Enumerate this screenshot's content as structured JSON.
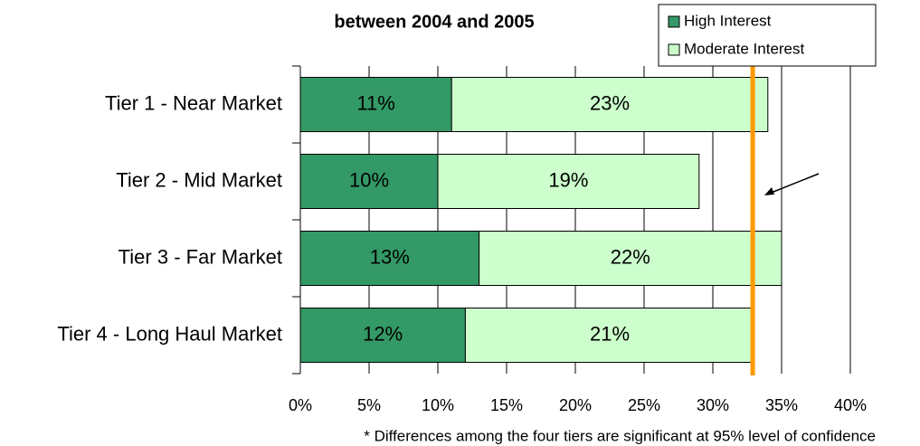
{
  "chart_data": {
    "type": "stacked_barh",
    "title": "between 2004 and 2005",
    "categories": [
      "Tier 1 - Near Market",
      "Tier 2 - Mid Market",
      "Tier 3 - Far Market",
      "Tier 4 - Long Haul Market"
    ],
    "series": [
      {
        "name": "High Interest",
        "color": "#339966",
        "values": [
          11,
          10,
          13,
          12
        ],
        "value_labels": [
          "11%",
          "10%",
          "13%",
          "12%"
        ]
      },
      {
        "name": "Moderate Interest",
        "color": "#ccffcc",
        "values": [
          23,
          19,
          22,
          21
        ],
        "value_labels": [
          "23%",
          "19%",
          "22%",
          "21%"
        ]
      }
    ],
    "xlim": [
      0,
      40
    ],
    "xticks": [
      {
        "value": 0,
        "label": "0%"
      },
      {
        "value": 5,
        "label": "5%"
      },
      {
        "value": 10,
        "label": "10%"
      },
      {
        "value": 15,
        "label": "15%"
      },
      {
        "value": 20,
        "label": "20%"
      },
      {
        "value": 25,
        "label": "25%"
      },
      {
        "value": 30,
        "label": "30%"
      },
      {
        "value": 35,
        "label": "35%"
      },
      {
        "value": 40,
        "label": "40%"
      }
    ],
    "grid": true,
    "reference_line": {
      "value": 32.9,
      "color": "#ff9900"
    },
    "footnote": "* Differences among the four tiers are significant at 95% level of confidence"
  }
}
